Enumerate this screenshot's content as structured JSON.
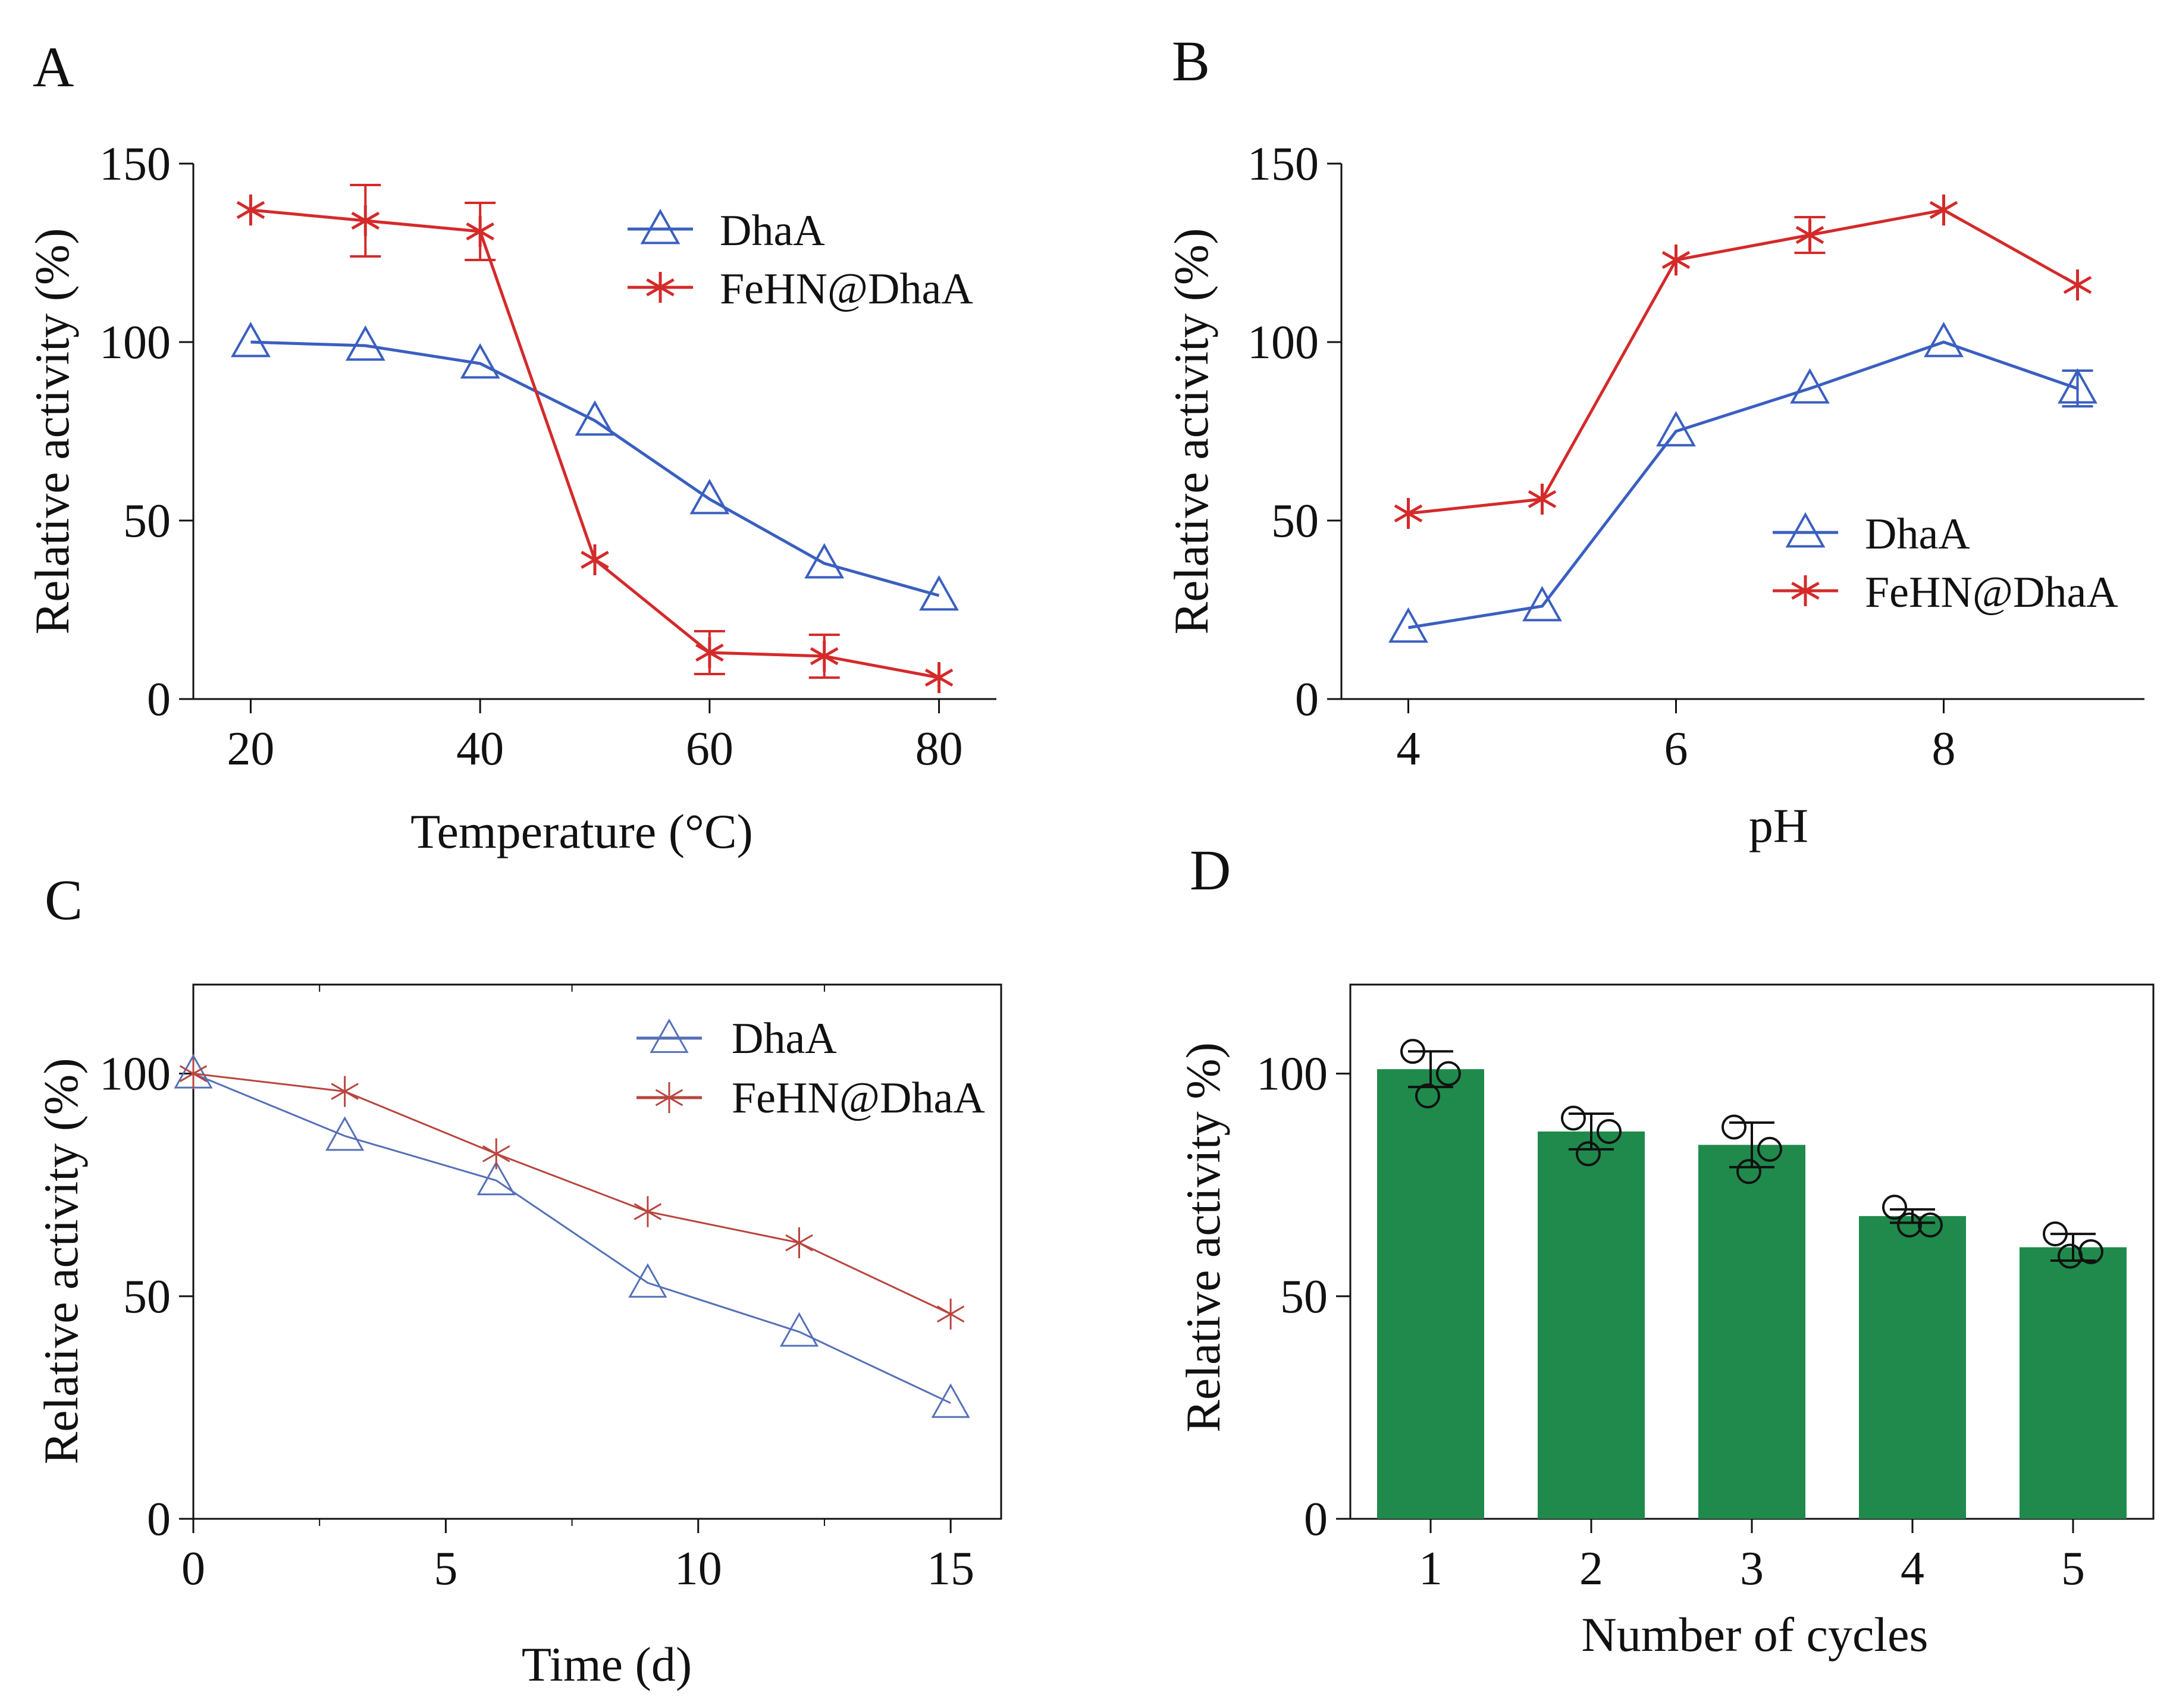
{
  "colors": {
    "dhaa": "#3a5fc0",
    "fehn": "#d42a2a",
    "dhaa_c": "#5570b8",
    "fehn_c": "#b8453e",
    "bar": "#1f8a4c",
    "axis": "#111111"
  },
  "chart_data": [
    {
      "panel": "A",
      "type": "line",
      "xlabel": "Temperature (°C)",
      "ylabel": "Relative activity (%)",
      "xlim": [
        15,
        85
      ],
      "ylim": [
        0,
        150
      ],
      "xticks": [
        20,
        40,
        60,
        80
      ],
      "yticks": [
        0,
        50,
        100,
        150
      ],
      "legend_position": "top-right",
      "series": [
        {
          "name": "DhaA",
          "marker": "triangle",
          "x": [
            20,
            30,
            40,
            50,
            60,
            70,
            80
          ],
          "y": [
            100,
            99,
            94,
            78,
            56,
            38,
            29
          ],
          "err": [
            0,
            0,
            0,
            0,
            0,
            0,
            0
          ]
        },
        {
          "name": "FeHN@DhaA",
          "marker": "asterisk",
          "x": [
            20,
            30,
            40,
            50,
            60,
            70,
            80
          ],
          "y": [
            137,
            134,
            131,
            39,
            13,
            12,
            6
          ],
          "err": [
            0,
            10,
            8,
            0,
            6,
            6,
            0
          ]
        }
      ]
    },
    {
      "panel": "B",
      "type": "line",
      "xlabel": "pH",
      "ylabel": "Relative activity (%)",
      "xlim": [
        3.5,
        9.5
      ],
      "ylim": [
        0,
        150
      ],
      "xticks": [
        4,
        6,
        8
      ],
      "yticks": [
        0,
        50,
        100,
        150
      ],
      "legend_position": "center-right",
      "series": [
        {
          "name": "DhaA",
          "marker": "triangle",
          "x": [
            4,
            5,
            6,
            7,
            8,
            9
          ],
          "y": [
            20,
            26,
            75,
            87,
            100,
            87
          ],
          "err": [
            0,
            0,
            0,
            0,
            0,
            5
          ]
        },
        {
          "name": "FeHN@DhaA",
          "marker": "asterisk",
          "x": [
            4,
            5,
            6,
            7,
            8,
            9
          ],
          "y": [
            52,
            56,
            123,
            130,
            137,
            116
          ],
          "err": [
            0,
            0,
            0,
            5,
            0,
            0
          ]
        }
      ]
    },
    {
      "panel": "C",
      "type": "line",
      "xlabel": "Time (d)",
      "ylabel": "Relative activity (%)",
      "xlim": [
        0,
        16
      ],
      "ylim": [
        0,
        120
      ],
      "xticks": [
        0,
        5,
        10,
        15
      ],
      "yticks": [
        0,
        50,
        100
      ],
      "legend_position": "top-right",
      "series": [
        {
          "name": "DhaA",
          "marker": "triangle",
          "x": [
            0,
            3,
            6,
            9,
            12,
            15
          ],
          "y": [
            100,
            86,
            76,
            53,
            42,
            26
          ]
        },
        {
          "name": "FeHN@DhaA",
          "marker": "asterisk",
          "x": [
            0,
            3,
            6,
            9,
            12,
            15
          ],
          "y": [
            100,
            96,
            82,
            69,
            62,
            46
          ]
        }
      ]
    },
    {
      "panel": "D",
      "type": "bar",
      "xlabel": "Number of cycles",
      "ylabel": "Relative activity %)",
      "xlim": [
        0.5,
        5.5
      ],
      "ylim": [
        0,
        120
      ],
      "categories": [
        "1",
        "2",
        "3",
        "4",
        "5"
      ],
      "values": [
        101,
        87,
        84,
        68,
        61
      ],
      "err": [
        4,
        4,
        5,
        1.5,
        3
      ],
      "yticks": [
        0,
        50,
        100
      ],
      "points": [
        [
          105,
          100,
          95
        ],
        [
          90,
          87,
          82
        ],
        [
          88,
          83,
          78
        ],
        [
          70,
          66,
          66
        ],
        [
          64,
          60,
          59
        ]
      ]
    }
  ]
}
